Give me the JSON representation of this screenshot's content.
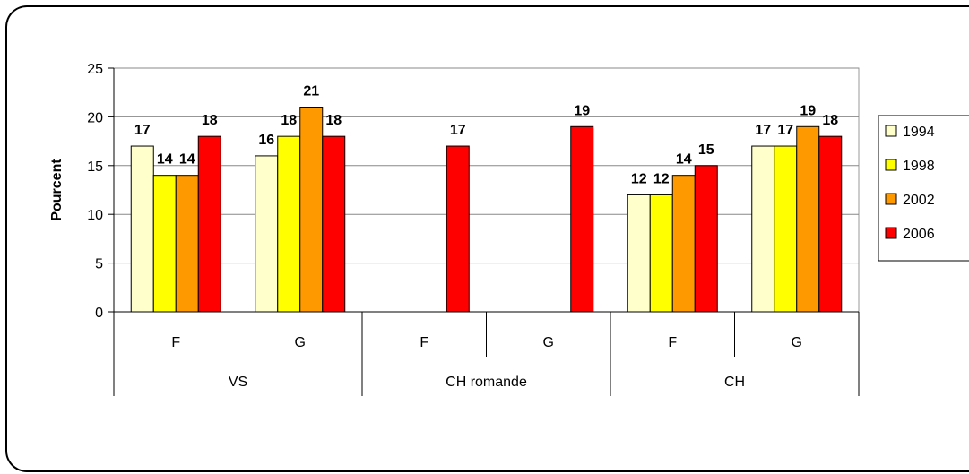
{
  "chart_data": {
    "type": "bar",
    "ylabel": "Pourcent",
    "ylim": [
      0,
      25
    ],
    "yticks": [
      0,
      5,
      10,
      15,
      20,
      25
    ],
    "grid": true,
    "legend_position": "right",
    "categories": [
      {
        "region": "VS",
        "sex": "F"
      },
      {
        "region": "VS",
        "sex": "G"
      },
      {
        "region": "CH romande",
        "sex": "F"
      },
      {
        "region": "CH romande",
        "sex": "G"
      },
      {
        "region": "CH",
        "sex": "F"
      },
      {
        "region": "CH",
        "sex": "G"
      }
    ],
    "groups": [
      "VS",
      "CH romande",
      "CH"
    ],
    "series": [
      {
        "name": "1994",
        "color": "#FFFFCC",
        "values": [
          17,
          16,
          null,
          null,
          12,
          17
        ]
      },
      {
        "name": "1998",
        "color": "#FFFF00",
        "values": [
          14,
          18,
          null,
          null,
          12,
          17
        ]
      },
      {
        "name": "2002",
        "color": "#FF9900",
        "values": [
          14,
          21,
          null,
          null,
          14,
          19
        ]
      },
      {
        "name": "2006",
        "color": "#FF0000",
        "values": [
          18,
          18,
          17,
          19,
          15,
          18
        ]
      }
    ]
  }
}
